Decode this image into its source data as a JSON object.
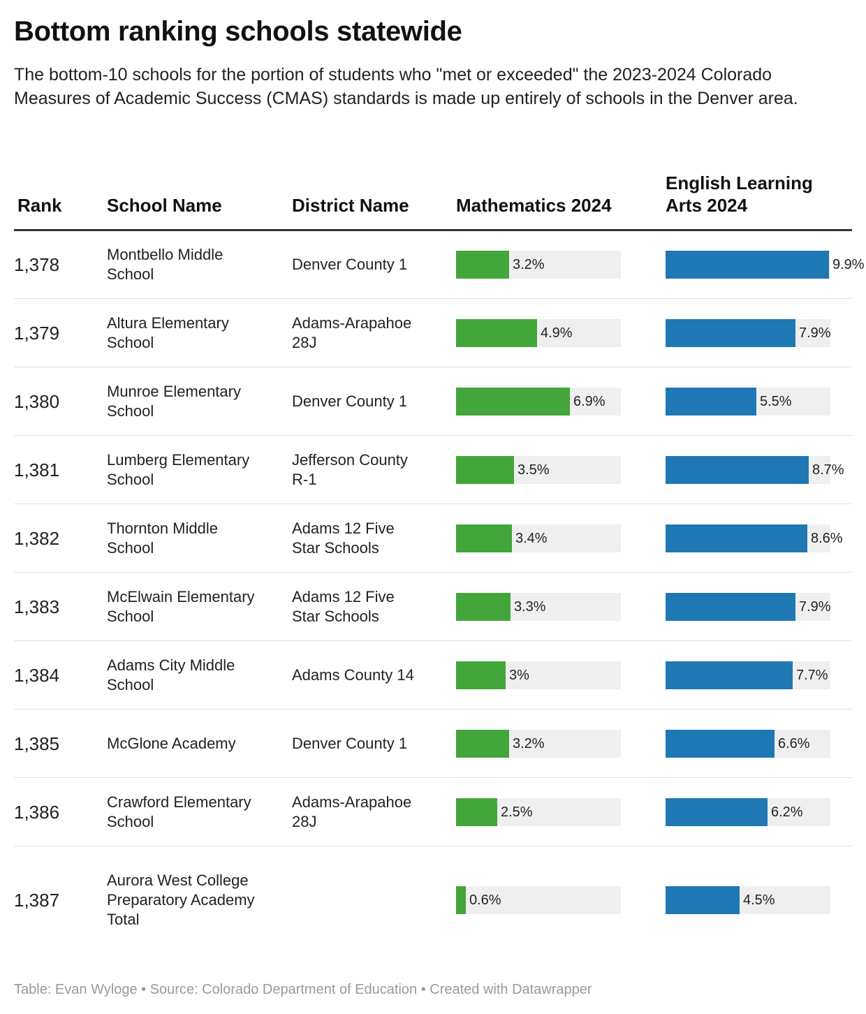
{
  "header": {
    "title": "Bottom ranking schools statewide",
    "subtitle": "The bottom-10 schools for the portion of students who \"met or exceeded\" the 2023-2024 Colorado Measures of Academic Success (CMAS) standards is made up entirely of schools in the Denver area."
  },
  "colors": {
    "math": "#43a63a",
    "ela": "#1f77b4",
    "track": "#efefef"
  },
  "chart_data": {
    "type": "table",
    "columns": [
      "Rank",
      "School Name",
      "District Name",
      "Mathematics 2024",
      "English Learning Arts 2024"
    ],
    "bar_max": 10,
    "rows": [
      {
        "rank": "1,378",
        "school": "Montbello Middle School",
        "district": "Denver County 1",
        "math": 3.2,
        "math_label": "3.2%",
        "ela": 9.9,
        "ela_label": "9.9%"
      },
      {
        "rank": "1,379",
        "school": "Altura Elementary School",
        "district": "Adams-Arapahoe 28J",
        "math": 4.9,
        "math_label": "4.9%",
        "ela": 7.9,
        "ela_label": "7.9%"
      },
      {
        "rank": "1,380",
        "school": "Munroe Elementary School",
        "district": "Denver County 1",
        "math": 6.9,
        "math_label": "6.9%",
        "ela": 5.5,
        "ela_label": "5.5%"
      },
      {
        "rank": "1,381",
        "school": "Lumberg Elementary School",
        "district": "Jefferson County R-1",
        "math": 3.5,
        "math_label": "3.5%",
        "ela": 8.7,
        "ela_label": "8.7%"
      },
      {
        "rank": "1,382",
        "school": "Thornton Middle School",
        "district": "Adams 12 Five Star Schools",
        "math": 3.4,
        "math_label": "3.4%",
        "ela": 8.6,
        "ela_label": "8.6%"
      },
      {
        "rank": "1,383",
        "school": "McElwain Elementary School",
        "district": "Adams 12 Five Star Schools",
        "math": 3.3,
        "math_label": "3.3%",
        "ela": 7.9,
        "ela_label": "7.9%"
      },
      {
        "rank": "1,384",
        "school": "Adams City Middle School",
        "district": "Adams County 14",
        "math": 3.0,
        "math_label": "3%",
        "ela": 7.7,
        "ela_label": "7.7%"
      },
      {
        "rank": "1,385",
        "school": "McGlone Academy",
        "district": "Denver County 1",
        "math": 3.2,
        "math_label": "3.2%",
        "ela": 6.6,
        "ela_label": "6.6%"
      },
      {
        "rank": "1,386",
        "school": "Crawford Elementary School",
        "district": "Adams-Arapahoe 28J",
        "math": 2.5,
        "math_label": "2.5%",
        "ela": 6.2,
        "ela_label": "6.2%"
      },
      {
        "rank": "1,387",
        "school": "Aurora West College Preparatory Academy Total",
        "district": "",
        "math": 0.6,
        "math_label": "0.6%",
        "ela": 4.5,
        "ela_label": "4.5%"
      }
    ]
  },
  "footer": {
    "text": "Table: Evan Wyloge • Source: Colorado Department of Education • Created with Datawrapper"
  }
}
